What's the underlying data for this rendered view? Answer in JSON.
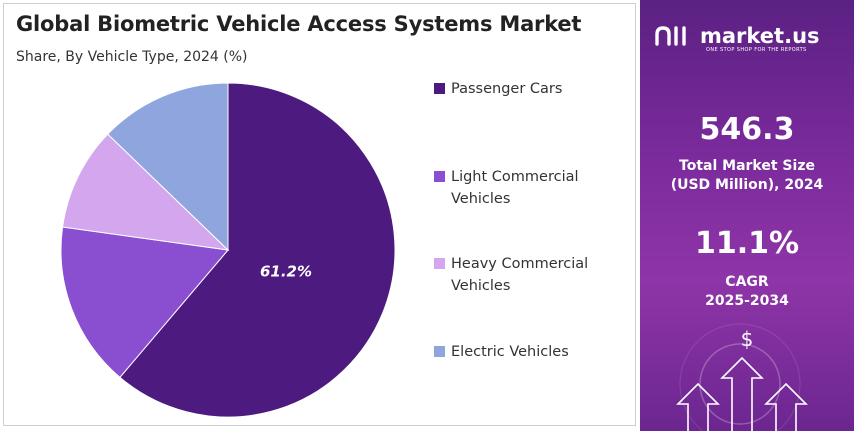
{
  "chart_data": {
    "type": "pie",
    "title": "Global Biometric Vehicle Access Systems Market",
    "subtitle": "Share, By Vehicle Type, 2024 (%)",
    "categories": [
      "Passenger Cars",
      "Light Commercial Vehicles",
      "Heavy Commercial Vehicles",
      "Electric Vehicles"
    ],
    "values": [
      61.2,
      16.0,
      10.0,
      12.8
    ],
    "data_labels": [
      "61.2%",
      "",
      "",
      ""
    ],
    "colors": [
      "#4d1a7f",
      "#8a4fd0",
      "#d4a6ee",
      "#8fa5dd"
    ],
    "legend_position": "right"
  },
  "side_panel": {
    "brand_name": "market.us",
    "brand_tagline": "ONE STOP SHOP FOR THE REPORTS",
    "market_size_value": "546.3",
    "market_size_label_line1": "Total Market Size",
    "market_size_label_line2": "(USD Million), 2024",
    "cagr_value": "11.1%",
    "cagr_label_line1": "CAGR",
    "cagr_label_line2": "2025-2034",
    "currency_symbol": "$",
    "icons": [
      "market-us-logo-icon",
      "dollar-icon",
      "up-arrow-icon"
    ]
  }
}
